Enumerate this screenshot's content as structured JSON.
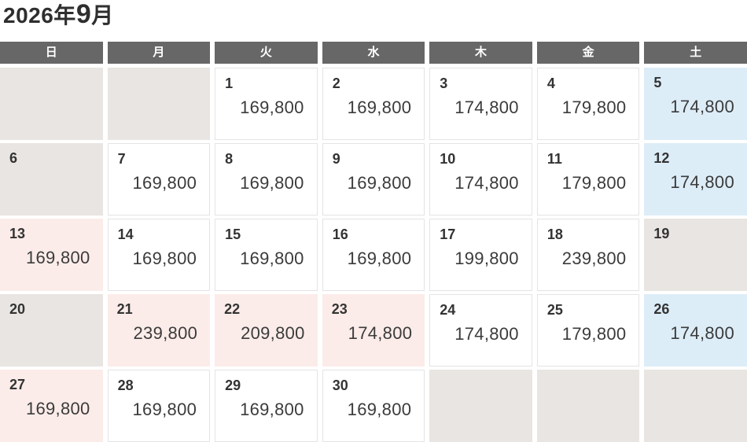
{
  "title": {
    "text": "2026年9月",
    "year": "2026",
    "year_label": "年",
    "month": "9",
    "month_label": "月"
  },
  "weekday_headers": [
    "日",
    "月",
    "火",
    "水",
    "木",
    "金",
    "土"
  ],
  "colors": {
    "header_bg": "#676767",
    "header_text": "#ffffff",
    "empty_bg": "#e8e5e2",
    "holiday_bg": "#fbece9",
    "saturday_bg": "#ddedf8",
    "cell_border": "#e4e4e4",
    "day_text": "#333333",
    "price_text": "#3b3b3b",
    "title_text": "#2e2e2e"
  },
  "calendar": {
    "weeks": [
      [
        {
          "variant": "empty"
        },
        {
          "variant": "empty"
        },
        {
          "day": "1",
          "price": "169,800",
          "variant": "normal"
        },
        {
          "day": "2",
          "price": "169,800",
          "variant": "normal"
        },
        {
          "day": "3",
          "price": "174,800",
          "variant": "normal"
        },
        {
          "day": "4",
          "price": "179,800",
          "variant": "normal"
        },
        {
          "day": "5",
          "price": "174,800",
          "variant": "saturday"
        }
      ],
      [
        {
          "day": "6",
          "variant": "unavailable"
        },
        {
          "day": "7",
          "price": "169,800",
          "variant": "normal"
        },
        {
          "day": "8",
          "price": "169,800",
          "variant": "normal"
        },
        {
          "day": "9",
          "price": "169,800",
          "variant": "normal"
        },
        {
          "day": "10",
          "price": "174,800",
          "variant": "normal"
        },
        {
          "day": "11",
          "price": "179,800",
          "variant": "normal"
        },
        {
          "day": "12",
          "price": "174,800",
          "variant": "saturday"
        }
      ],
      [
        {
          "day": "13",
          "price": "169,800",
          "variant": "holiday"
        },
        {
          "day": "14",
          "price": "169,800",
          "variant": "normal"
        },
        {
          "day": "15",
          "price": "169,800",
          "variant": "normal"
        },
        {
          "day": "16",
          "price": "169,800",
          "variant": "normal"
        },
        {
          "day": "17",
          "price": "199,800",
          "variant": "normal"
        },
        {
          "day": "18",
          "price": "239,800",
          "variant": "normal"
        },
        {
          "day": "19",
          "variant": "unavailable"
        }
      ],
      [
        {
          "day": "20",
          "variant": "unavailable"
        },
        {
          "day": "21",
          "price": "239,800",
          "variant": "holiday"
        },
        {
          "day": "22",
          "price": "209,800",
          "variant": "holiday"
        },
        {
          "day": "23",
          "price": "174,800",
          "variant": "holiday"
        },
        {
          "day": "24",
          "price": "174,800",
          "variant": "normal"
        },
        {
          "day": "25",
          "price": "179,800",
          "variant": "normal"
        },
        {
          "day": "26",
          "price": "174,800",
          "variant": "saturday"
        }
      ],
      [
        {
          "day": "27",
          "price": "169,800",
          "variant": "holiday"
        },
        {
          "day": "28",
          "price": "169,800",
          "variant": "normal"
        },
        {
          "day": "29",
          "price": "169,800",
          "variant": "normal"
        },
        {
          "day": "30",
          "price": "169,800",
          "variant": "normal"
        },
        {
          "variant": "empty"
        },
        {
          "variant": "empty"
        },
        {
          "variant": "empty"
        }
      ]
    ]
  }
}
